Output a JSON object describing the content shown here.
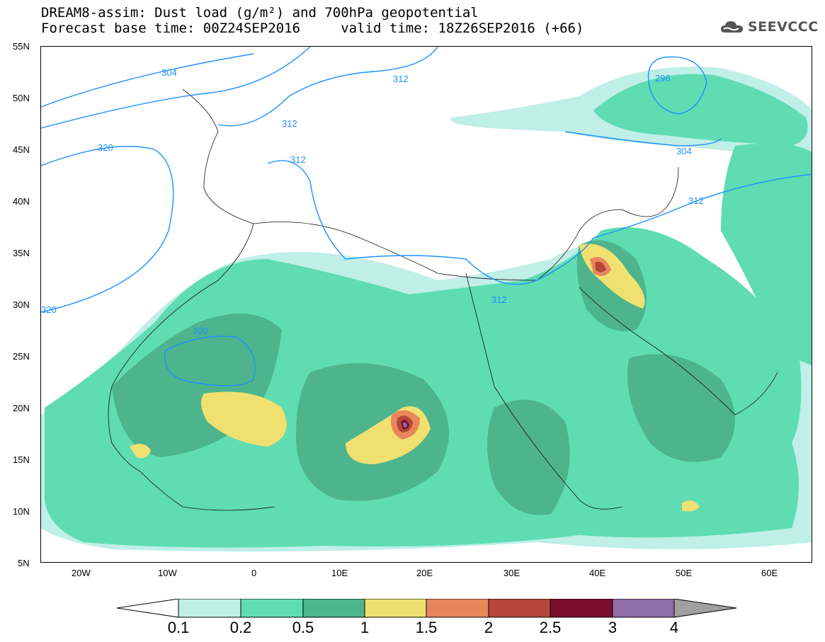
{
  "title": {
    "line1": "DREAM8-assim: Dust load (g/m²) and 700hPa geopotential",
    "line2": "Forecast base time: 00Z24SEP2016     valid time: 18Z26SEP2016 (+66)"
  },
  "logo": {
    "text": "SEEVCCC",
    "icon": "cloud-icon"
  },
  "axes": {
    "lat_labels": [
      "55N",
      "50N",
      "45N",
      "40N",
      "35N",
      "30N",
      "25N",
      "20N",
      "15N",
      "10N",
      "5N"
    ],
    "lon_labels": [
      "20W",
      "10W",
      "0",
      "10E",
      "20E",
      "30E",
      "40E",
      "50E",
      "60E"
    ],
    "lat_range": [
      5,
      55
    ],
    "lon_range": [
      -25,
      65
    ]
  },
  "contours": {
    "labels": [
      "304",
      "312",
      "320",
      "312",
      "312",
      "312",
      "296",
      "304",
      "312",
      "320",
      "320"
    ],
    "color": "#1e90ff"
  },
  "colorbar": {
    "labels": [
      "0.1",
      "0.2",
      "0.5",
      "1",
      "1.5",
      "2",
      "2.5",
      "3",
      "4"
    ],
    "colors": [
      "#bfefe6",
      "#5fdcb2",
      "#4db48d",
      "#f0e070",
      "#e8875c",
      "#b4473a",
      "#7b0e2e",
      "#8f6fa6",
      "#a0a0a0"
    ]
  }
}
